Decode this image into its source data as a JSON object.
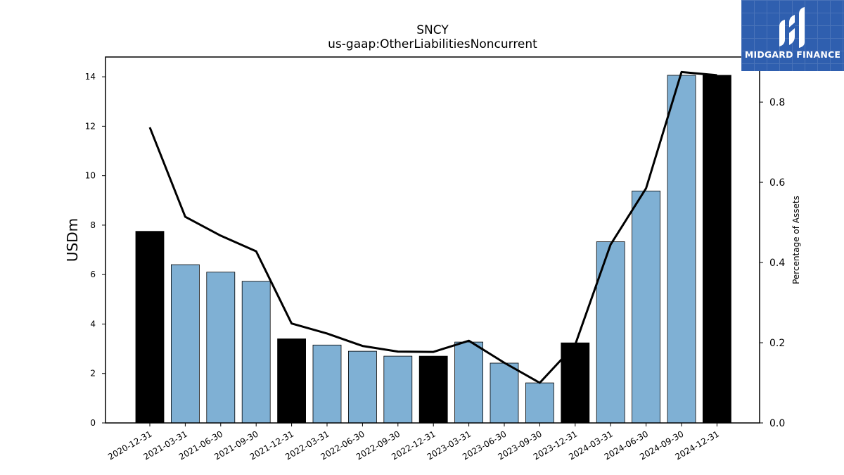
{
  "chart_data": {
    "type": "bar",
    "title": "SNCY",
    "subtitle": "us-gaap:OtherLiabilitiesNoncurrent",
    "ylabel_left": "USDm",
    "ylabel_right": "Percentage of Assets",
    "categories": [
      "2020-12-31",
      "2021-03-31",
      "2021-06-30",
      "2021-09-30",
      "2021-12-31",
      "2022-03-31",
      "2022-06-30",
      "2022-09-30",
      "2022-12-31",
      "2023-03-31",
      "2023-06-30",
      "2023-09-30",
      "2023-12-31",
      "2024-03-31",
      "2024-06-30",
      "2024-09-30",
      "2024-12-31"
    ],
    "series": [
      {
        "type": "bar",
        "values": [
          7.75,
          6.4,
          6.1,
          5.73,
          3.4,
          3.15,
          2.9,
          2.7,
          2.7,
          3.27,
          2.42,
          1.62,
          3.24,
          7.33,
          9.38,
          14.06,
          14.06
        ],
        "highlight": [
          true,
          false,
          false,
          false,
          true,
          false,
          false,
          false,
          true,
          false,
          false,
          false,
          true,
          false,
          false,
          false,
          true
        ]
      },
      {
        "type": "line",
        "axis": "right",
        "values": [
          0.737,
          0.514,
          0.467,
          0.428,
          0.248,
          0.223,
          0.192,
          0.178,
          0.177,
          0.205,
          0.15,
          0.1,
          0.195,
          0.445,
          0.585,
          0.875,
          0.867
        ]
      }
    ],
    "ylim_left": [
      0,
      14.8
    ],
    "ylim_right": [
      0,
      0.9125
    ],
    "yticks_left": [
      0,
      2,
      4,
      6,
      8,
      10,
      12,
      14
    ],
    "yticks_right": [
      0.0,
      0.2,
      0.4,
      0.6,
      0.8
    ],
    "colors": {
      "bar": "#7fb0d4",
      "bar_highlight": "#000000",
      "line": "#000000",
      "logo_bg": "#2f5faf"
    }
  },
  "logo": {
    "text": "MIDGARD FINANCE"
  }
}
